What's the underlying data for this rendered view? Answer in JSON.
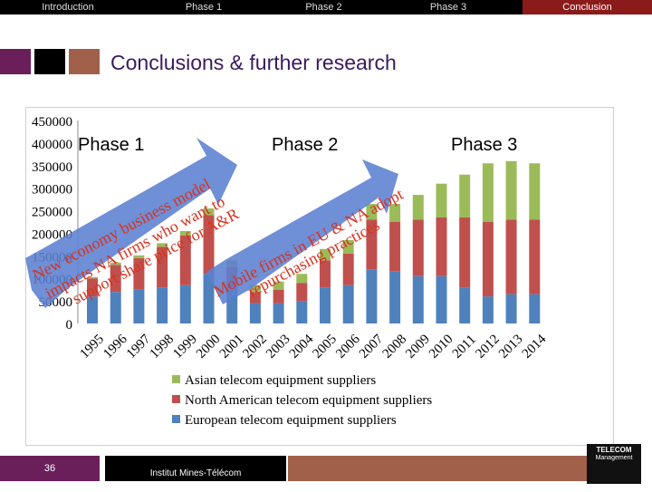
{
  "nav": {
    "items": [
      "Introduction",
      "Phase 1",
      "Phase 2",
      "Phase 3",
      "Conclusion"
    ],
    "active_index": 4
  },
  "slide": {
    "title": "Conclusions & further research",
    "page_number": "36",
    "institution": "Institut Mines-Télécom",
    "logo_text": [
      "TELECOM",
      "Management"
    ]
  },
  "phases": [
    {
      "label": "Phase 1",
      "arrow_text": [
        "New economy business model",
        "impacts NA firms who want to",
        "support share price for A&R"
      ]
    },
    {
      "label": "Phase 2",
      "arrow_text": [
        "Mobile firms in EU & NA adopt",
        "repurchasing practices"
      ]
    },
    {
      "label": "Phase 3"
    }
  ],
  "colors": {
    "european": "#4f81bd",
    "north_american": "#c0504d",
    "asian": "#9bbb59",
    "arrow_fill": "#5b7fd1",
    "accent": "#3a1a5e"
  },
  "chart_data": {
    "type": "bar",
    "stacked": true,
    "categories": [
      "1995",
      "1996",
      "1997",
      "1998",
      "1999",
      "2000",
      "2001",
      "2002",
      "2003",
      "2004",
      "2005",
      "2006",
      "2007",
      "2008",
      "2009",
      "2010",
      "2011",
      "2012",
      "2013",
      "2014"
    ],
    "series": [
      {
        "name": "European telecom equipment suppliers",
        "values": [
          60000,
          70000,
          75000,
          80000,
          85000,
          110000,
          75000,
          45000,
          45000,
          50000,
          80000,
          85000,
          120000,
          115000,
          105000,
          105000,
          80000,
          60000,
          65000,
          65000
        ]
      },
      {
        "name": "North American telecom equipment suppliers",
        "values": [
          40000,
          60000,
          70000,
          90000,
          110000,
          130000,
          50000,
          25000,
          30000,
          40000,
          60000,
          70000,
          110000,
          110000,
          125000,
          130000,
          155000,
          165000,
          165000,
          165000
        ]
      },
      {
        "name": "Asian telecom equipment suppliers",
        "values": [
          3000,
          5000,
          6000,
          8000,
          10000,
          15000,
          15000,
          15000,
          18000,
          20000,
          25000,
          30000,
          35000,
          40000,
          55000,
          75000,
          95000,
          130000,
          130000,
          125000
        ]
      }
    ],
    "ylim": [
      0,
      450000
    ],
    "yticks": [
      0,
      50000,
      100000,
      150000,
      200000,
      250000,
      300000,
      350000,
      400000,
      450000
    ],
    "ytick_labels": [
      "0",
      "50000",
      "100000",
      "150000",
      "200000",
      "250000",
      "300000",
      "350000",
      "400000",
      "450000"
    ],
    "legend_position": "bottom",
    "grid": false
  }
}
